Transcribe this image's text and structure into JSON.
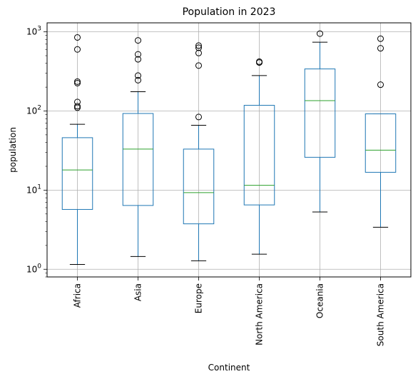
{
  "chart_data": {
    "type": "box",
    "title": "Population in 2023",
    "xlabel": "Continent",
    "ylabel": "population",
    "yscale": "log",
    "ylim": [
      0.8,
      1300
    ],
    "grid": true,
    "yticks": [
      {
        "value": 1,
        "base": "10",
        "exp": "0"
      },
      {
        "value": 10,
        "base": "10",
        "exp": "1"
      },
      {
        "value": 100,
        "base": "10",
        "exp": "2"
      },
      {
        "value": 1000,
        "base": "10",
        "exp": "3"
      }
    ],
    "colors": {
      "box": "#1f77b4",
      "median": "#2ca02c",
      "whisker": "#1f77b4",
      "cap": "#000000",
      "flier": "#000000",
      "grid": "#b0b0b0"
    },
    "categories": [
      "Africa",
      "Asia",
      "Europe",
      "North America",
      "Oceania",
      "South America"
    ],
    "boxes": [
      {
        "category": "Africa",
        "whislo": 1.15,
        "q1": 5.7,
        "med": 18,
        "q3": 46,
        "whishi": 68,
        "fliers": [
          110,
          115,
          130,
          225,
          235,
          600,
          850
        ]
      },
      {
        "category": "Asia",
        "whislo": 1.45,
        "q1": 6.4,
        "med": 33,
        "q3": 93,
        "whishi": 175,
        "fliers": [
          245,
          280,
          450,
          520,
          780
        ]
      },
      {
        "category": "Europe",
        "whislo": 1.28,
        "q1": 3.75,
        "med": 9.3,
        "q3": 33,
        "whishi": 66,
        "fliers": [
          84,
          375,
          540,
          630,
          670
        ]
      },
      {
        "category": "North America",
        "whislo": 1.55,
        "q1": 6.5,
        "med": 11.5,
        "q3": 118,
        "whishi": 280,
        "fliers": [
          410,
          420
        ]
      },
      {
        "category": "Oceania",
        "whislo": 5.3,
        "q1": 26,
        "med": 135,
        "q3": 340,
        "whishi": 740,
        "fliers": [
          950
        ]
      },
      {
        "category": "South America",
        "whislo": 3.4,
        "q1": 16.8,
        "med": 32,
        "q3": 92,
        "whishi": 92,
        "fliers": [
          215,
          620,
          820
        ]
      }
    ]
  }
}
